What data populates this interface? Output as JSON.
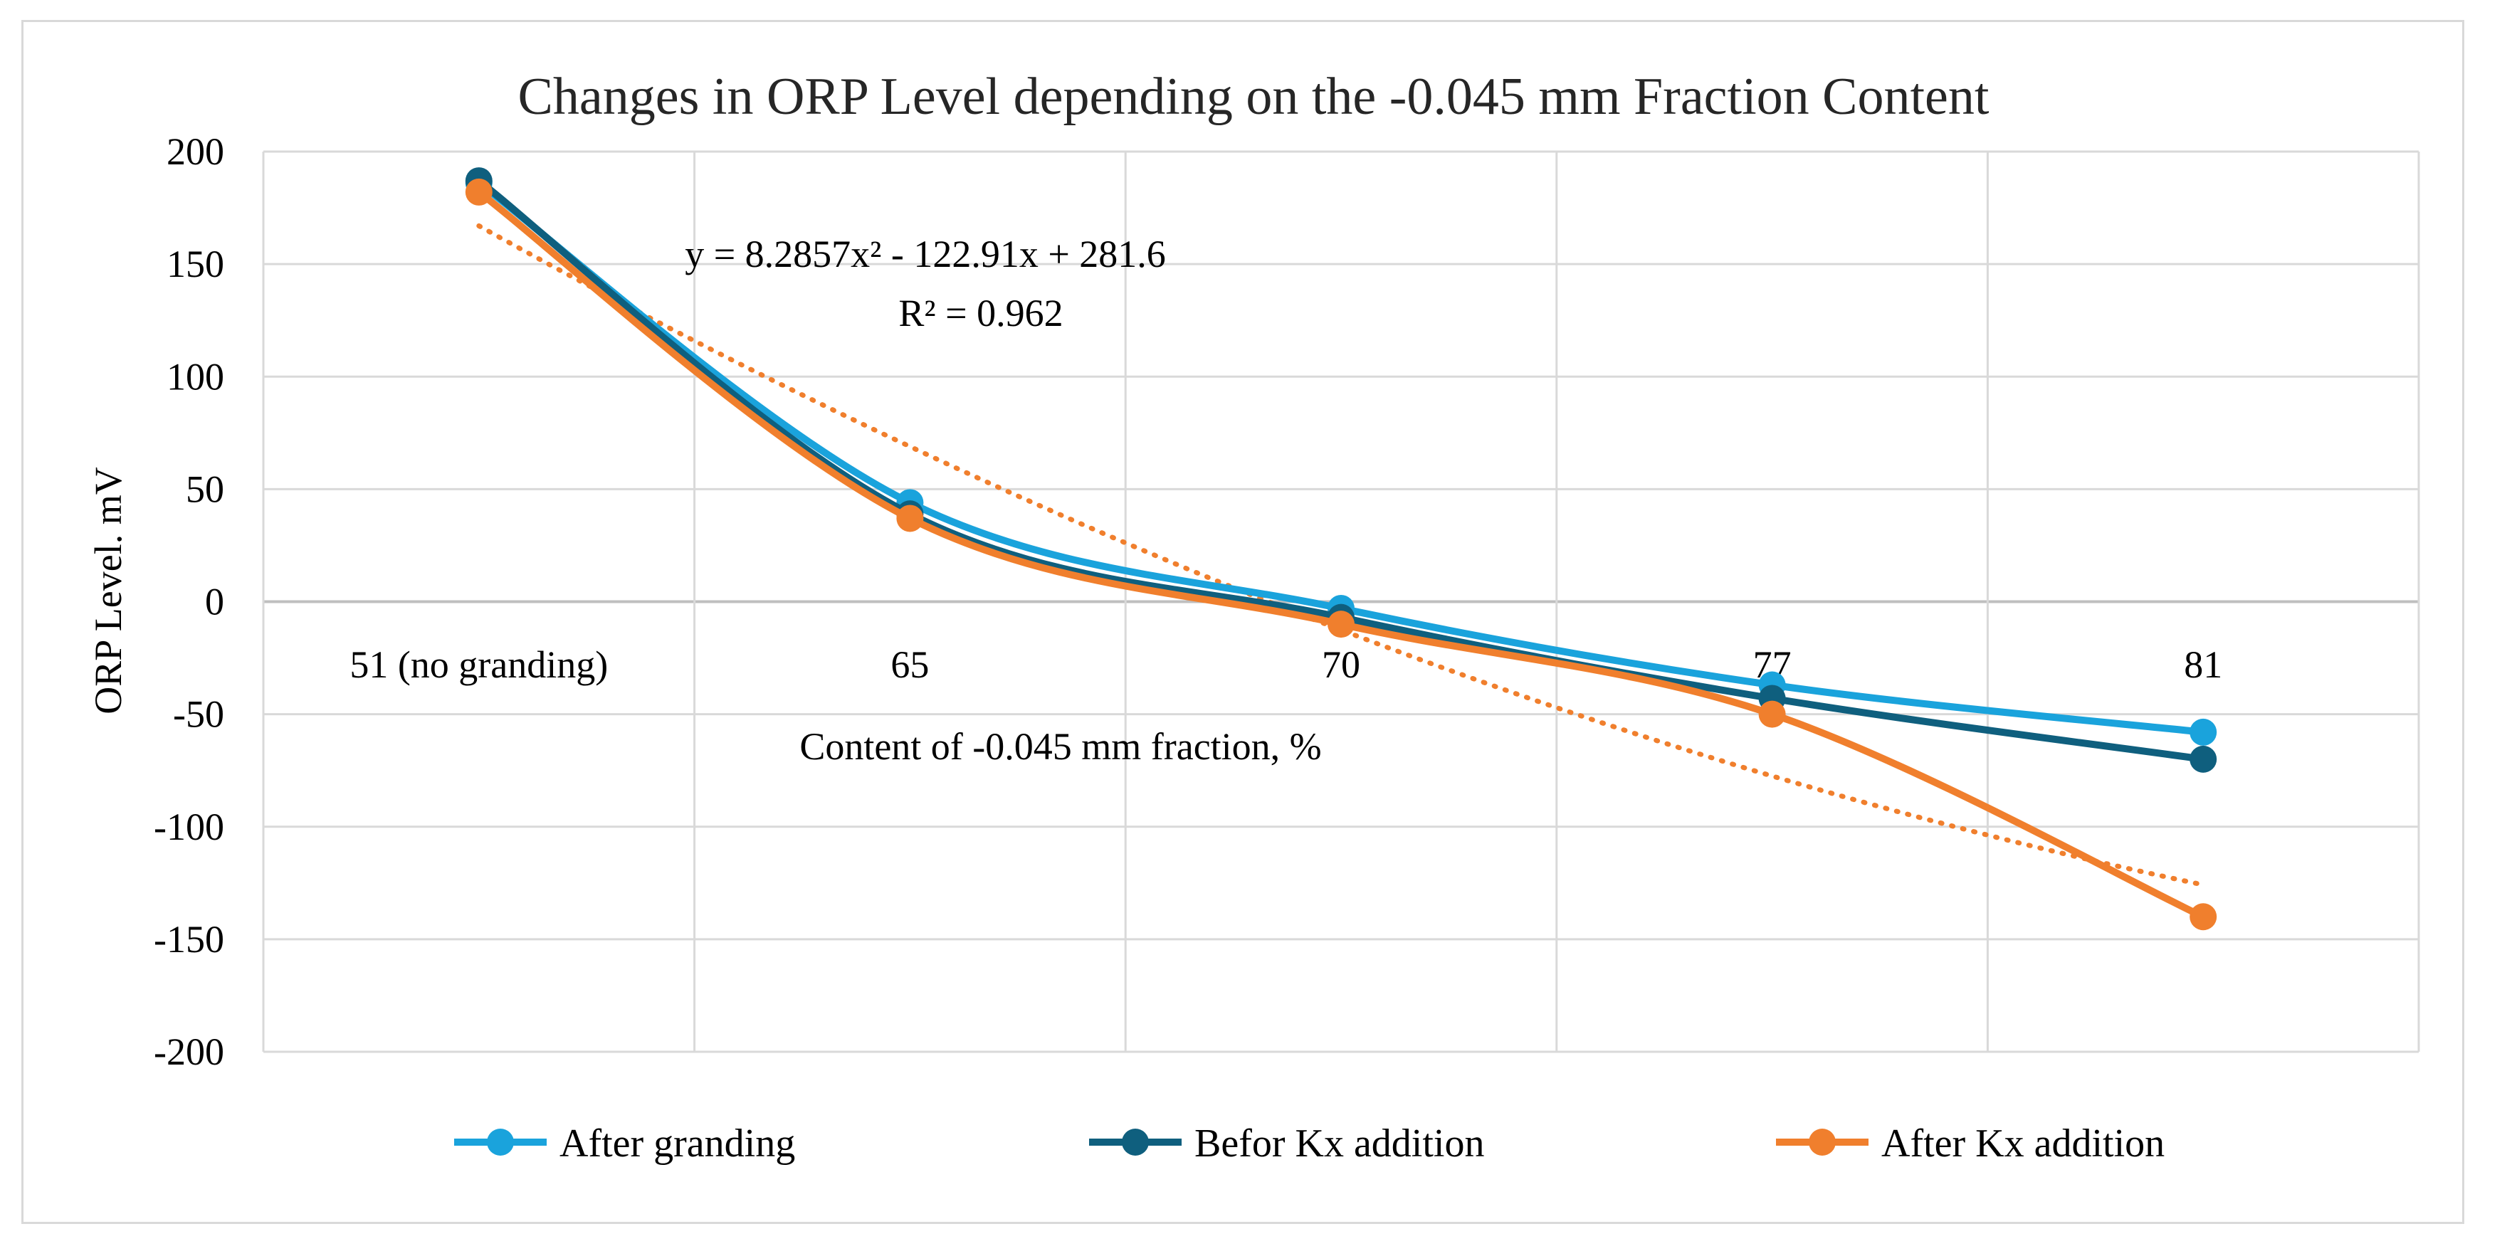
{
  "chart_data": {
    "type": "line",
    "title": "Changes in ORP Level depending on the -0.045 mm Fraction Content",
    "xlabel": "Content of -0.045 mm fraction, %",
    "ylabel": "ORP Level. mV",
    "categories": [
      "51 (no granding)",
      "65",
      "70",
      "77",
      "81"
    ],
    "ylim": [
      -200,
      200
    ],
    "yticks": [
      200,
      150,
      100,
      50,
      0,
      -50,
      -100,
      -150,
      -200
    ],
    "ytick_labels": [
      "200",
      "150",
      "100",
      "50",
      "0",
      "-50",
      "-100",
      "-150",
      "-200"
    ],
    "grid": true,
    "legend": "bottom",
    "series": [
      {
        "name": "After granding",
        "values": [
          186,
          44,
          -3,
          -37,
          -58
        ],
        "color": "#1aa3dc"
      },
      {
        "name": "Befor Kx addition",
        "values": [
          187,
          39,
          -7,
          -43,
          -70
        ],
        "color": "#0f5f7e"
      },
      {
        "name": "After Kx addition",
        "values": [
          182,
          37,
          -10,
          -50,
          -140
        ],
        "color": "#f07f2d"
      }
    ],
    "trendline": {
      "series": "After Kx addition",
      "type": "polynomial",
      "coefficients": [
        8.2857,
        -122.91,
        281.6
      ],
      "color": "#f07f2d",
      "equation_label": "y = 8.2857x² - 122.91x + 281.6",
      "r2_label": "R² = 0.962"
    }
  }
}
